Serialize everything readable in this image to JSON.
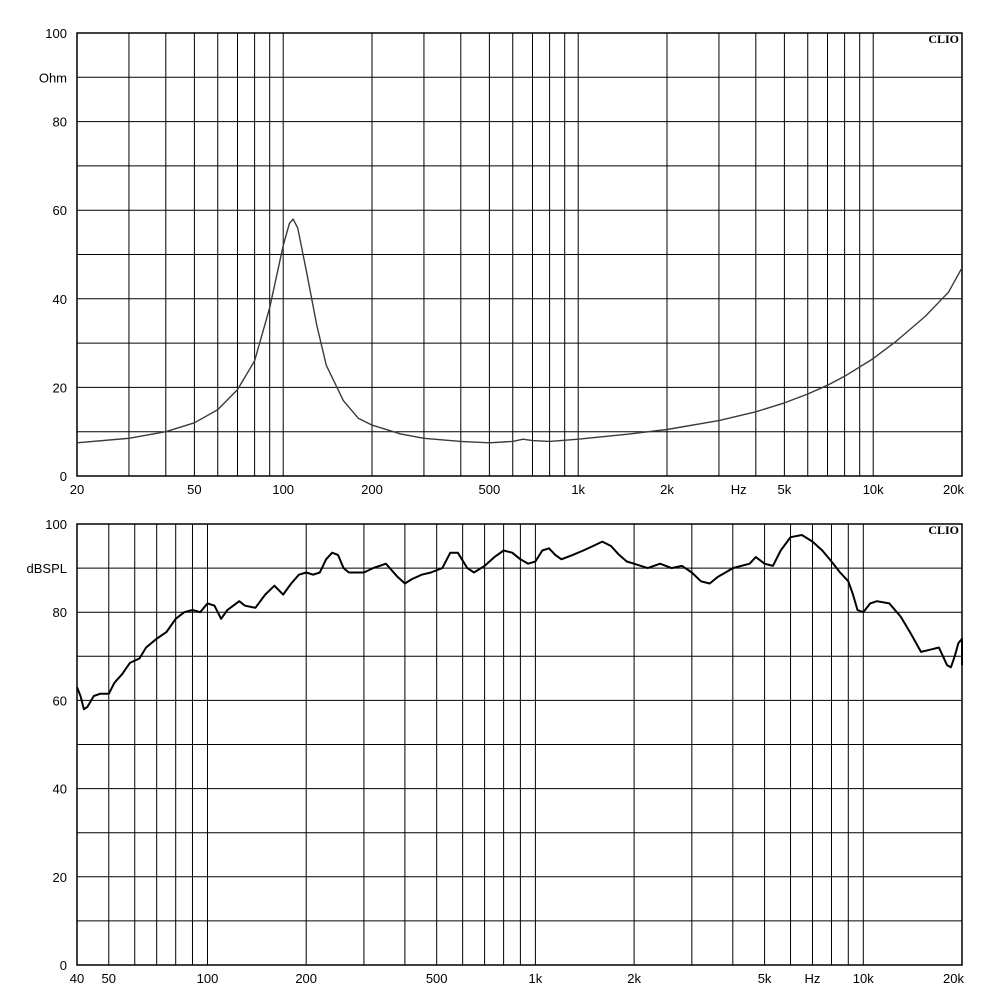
{
  "chart_data": [
    {
      "type": "line",
      "brand": "CLIO",
      "ylabel": "Ohm",
      "xlabel": "Hz",
      "x_scale": "log",
      "xlim": [
        20,
        20000
      ],
      "ylim": [
        0,
        100
      ],
      "grid": true,
      "y_ticks": [
        {
          "value": 0,
          "label": "0"
        },
        {
          "value": 20,
          "label": "20"
        },
        {
          "value": 40,
          "label": "40"
        },
        {
          "value": 60,
          "label": "60"
        },
        {
          "value": 80,
          "label": "80"
        },
        {
          "value": 100,
          "label": "100"
        }
      ],
      "x_ticks": [
        {
          "value": 20,
          "label": "20"
        },
        {
          "value": 50,
          "label": "50"
        },
        {
          "value": 100,
          "label": "100"
        },
        {
          "value": 200,
          "label": "200"
        },
        {
          "value": 500,
          "label": "500"
        },
        {
          "value": 1000,
          "label": "1k"
        },
        {
          "value": 2000,
          "label": "2k"
        },
        {
          "value": 5000,
          "label": "5k"
        },
        {
          "value": 10000,
          "label": "10k"
        },
        {
          "value": 20000,
          "label": "20k"
        }
      ],
      "series": [
        {
          "color": "#3a3a3a",
          "points": [
            [
              20,
              7.5
            ],
            [
              30,
              8.5
            ],
            [
              40,
              10
            ],
            [
              50,
              12
            ],
            [
              60,
              15
            ],
            [
              70,
              19.5
            ],
            [
              80,
              26
            ],
            [
              90,
              38
            ],
            [
              100,
              52
            ],
            [
              105,
              57
            ],
            [
              108,
              58
            ],
            [
              112,
              56
            ],
            [
              120,
              46
            ],
            [
              130,
              34
            ],
            [
              140,
              25
            ],
            [
              160,
              17
            ],
            [
              180,
              13
            ],
            [
              200,
              11.5
            ],
            [
              250,
              9.5
            ],
            [
              300,
              8.5
            ],
            [
              400,
              7.8
            ],
            [
              500,
              7.5
            ],
            [
              600,
              7.8
            ],
            [
              650,
              8.3
            ],
            [
              700,
              8
            ],
            [
              800,
              7.8
            ],
            [
              1000,
              8.3
            ],
            [
              1500,
              9.5
            ],
            [
              2000,
              10.5
            ],
            [
              3000,
              12.5
            ],
            [
              4000,
              14.5
            ],
            [
              5000,
              16.5
            ],
            [
              6000,
              18.5
            ],
            [
              7000,
              20.5
            ],
            [
              8000,
              22.5
            ],
            [
              10000,
              26.5
            ],
            [
              12000,
              30.5
            ],
            [
              15000,
              36
            ],
            [
              18000,
              41.5
            ],
            [
              20000,
              47
            ]
          ]
        }
      ]
    },
    {
      "type": "line",
      "brand": "CLIO",
      "ylabel": "dBSPL",
      "xlabel": "Hz",
      "x_scale": "log",
      "xlim": [
        40,
        20000
      ],
      "ylim": [
        0,
        100
      ],
      "grid": true,
      "y_ticks": [
        {
          "value": 0,
          "label": "0"
        },
        {
          "value": 20,
          "label": "20"
        },
        {
          "value": 40,
          "label": "40"
        },
        {
          "value": 60,
          "label": "60"
        },
        {
          "value": 80,
          "label": "80"
        },
        {
          "value": 100,
          "label": "100"
        }
      ],
      "x_ticks": [
        {
          "value": 40,
          "label": "40"
        },
        {
          "value": 50,
          "label": "50"
        },
        {
          "value": 100,
          "label": "100"
        },
        {
          "value": 200,
          "label": "200"
        },
        {
          "value": 500,
          "label": "500"
        },
        {
          "value": 1000,
          "label": "1k"
        },
        {
          "value": 2000,
          "label": "2k"
        },
        {
          "value": 5000,
          "label": "5k"
        },
        {
          "value": 10000,
          "label": "10k"
        },
        {
          "value": 20000,
          "label": "20k"
        }
      ],
      "series": [
        {
          "color": "#000000",
          "points": [
            [
              40,
              63
            ],
            [
              41,
              61
            ],
            [
              42,
              58
            ],
            [
              43,
              58.5
            ],
            [
              45,
              61
            ],
            [
              47,
              61.5
            ],
            [
              50,
              61.5
            ],
            [
              52,
              64
            ],
            [
              55,
              66
            ],
            [
              58,
              68.5
            ],
            [
              62,
              69.5
            ],
            [
              65,
              72
            ],
            [
              70,
              74
            ],
            [
              75,
              75.5
            ],
            [
              80,
              78.5
            ],
            [
              85,
              80
            ],
            [
              90,
              80.5
            ],
            [
              95,
              80
            ],
            [
              100,
              82
            ],
            [
              105,
              81.5
            ],
            [
              110,
              78.5
            ],
            [
              115,
              80.5
            ],
            [
              120,
              81.5
            ],
            [
              125,
              82.5
            ],
            [
              130,
              81.5
            ],
            [
              140,
              81
            ],
            [
              150,
              84
            ],
            [
              160,
              86
            ],
            [
              170,
              84
            ],
            [
              180,
              86.5
            ],
            [
              190,
              88.5
            ],
            [
              200,
              89
            ],
            [
              210,
              88.5
            ],
            [
              220,
              89
            ],
            [
              230,
              92
            ],
            [
              240,
              93.5
            ],
            [
              250,
              93
            ],
            [
              260,
              90
            ],
            [
              270,
              89
            ],
            [
              300,
              89
            ],
            [
              320,
              90
            ],
            [
              350,
              91
            ],
            [
              380,
              88
            ],
            [
              400,
              86.5
            ],
            [
              420,
              87.5
            ],
            [
              450,
              88.5
            ],
            [
              480,
              89
            ],
            [
              520,
              90
            ],
            [
              550,
              93.5
            ],
            [
              580,
              93.5
            ],
            [
              620,
              90
            ],
            [
              650,
              89
            ],
            [
              700,
              90.5
            ],
            [
              750,
              92.5
            ],
            [
              800,
              94
            ],
            [
              850,
              93.5
            ],
            [
              900,
              92
            ],
            [
              950,
              91
            ],
            [
              1000,
              91.5
            ],
            [
              1050,
              94
            ],
            [
              1100,
              94.5
            ],
            [
              1150,
              93
            ],
            [
              1200,
              92
            ],
            [
              1300,
              93
            ],
            [
              1400,
              94
            ],
            [
              1500,
              95
            ],
            [
              1600,
              96
            ],
            [
              1700,
              95
            ],
            [
              1800,
              93
            ],
            [
              1900,
              91.5
            ],
            [
              2000,
              91
            ],
            [
              2200,
              90
            ],
            [
              2400,
              91
            ],
            [
              2600,
              90
            ],
            [
              2800,
              90.5
            ],
            [
              3000,
              89
            ],
            [
              3200,
              87
            ],
            [
              3400,
              86.5
            ],
            [
              3600,
              88
            ],
            [
              3800,
              89
            ],
            [
              4000,
              90
            ],
            [
              4500,
              91
            ],
            [
              4700,
              92.5
            ],
            [
              5000,
              91
            ],
            [
              5300,
              90.5
            ],
            [
              5600,
              94
            ],
            [
              6000,
              97
            ],
            [
              6500,
              97.5
            ],
            [
              7000,
              96
            ],
            [
              7500,
              94
            ],
            [
              8000,
              91.5
            ],
            [
              8500,
              89
            ],
            [
              9000,
              87
            ],
            [
              9300,
              84
            ],
            [
              9600,
              80.5
            ],
            [
              10000,
              80
            ],
            [
              10500,
              82
            ],
            [
              11000,
              82.5
            ],
            [
              12000,
              82
            ],
            [
              13000,
              79
            ],
            [
              14000,
              75
            ],
            [
              15000,
              71
            ],
            [
              16000,
              71.5
            ],
            [
              17000,
              72
            ],
            [
              17500,
              70
            ],
            [
              18000,
              68
            ],
            [
              18500,
              67.5
            ],
            [
              19000,
              70
            ],
            [
              19500,
              73
            ],
            [
              20000,
              74
            ],
            [
              20500,
              73
            ],
            [
              21000,
              70
            ],
            [
              21500,
              68
            ]
          ]
        }
      ]
    }
  ]
}
